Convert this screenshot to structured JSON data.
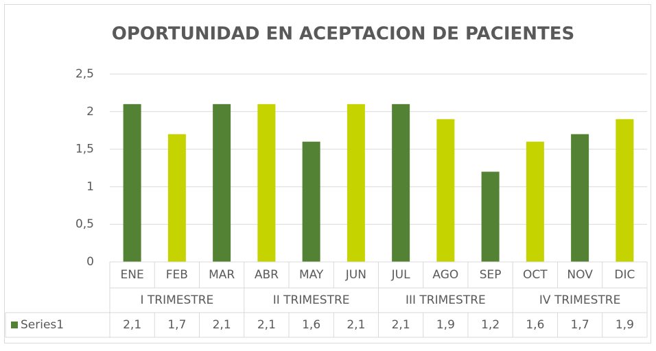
{
  "chart_data": {
    "type": "bar",
    "title": "OPORTUNIDAD EN ACEPTACION DE PACIENTES",
    "categories": [
      "ENE",
      "FEB",
      "MAR",
      "ABR",
      "MAY",
      "JUN",
      "JUL",
      "AGO",
      "SEP",
      "OCT",
      "NOV",
      "DIC"
    ],
    "groups": [
      "I TRIMESTRE",
      "II TRIMESTRE",
      "III TRIMESTRE",
      "IV TRIMESTRE"
    ],
    "series": [
      {
        "name": "Series1",
        "color": "#548235",
        "values": [
          2.1,
          1.7,
          2.1,
          2.1,
          1.6,
          2.1,
          2.1,
          1.9,
          1.2,
          1.6,
          1.7,
          1.9
        ],
        "value_labels": [
          "2,1",
          "1,7",
          "2,1",
          "2,1",
          "1,6",
          "2,1",
          "2,1",
          "1,9",
          "1,2",
          "1,6",
          "1,7",
          "1,9"
        ],
        "colors": [
          "#548235",
          "#c5d400",
          "#548235",
          "#c5d400",
          "#548235",
          "#c5d400",
          "#548235",
          "#c5d400",
          "#548235",
          "#c5d400",
          "#548235",
          "#c5d400"
        ]
      }
    ],
    "ylim": [
      0,
      2.5
    ],
    "yticks": [
      0,
      {
        "value": 0.5,
        "label": "0,5"
      },
      1,
      {
        "value": 1.5,
        "label": "1,5"
      },
      2,
      {
        "value": 2.5,
        "label": "2,5"
      }
    ],
    "grid": true
  }
}
